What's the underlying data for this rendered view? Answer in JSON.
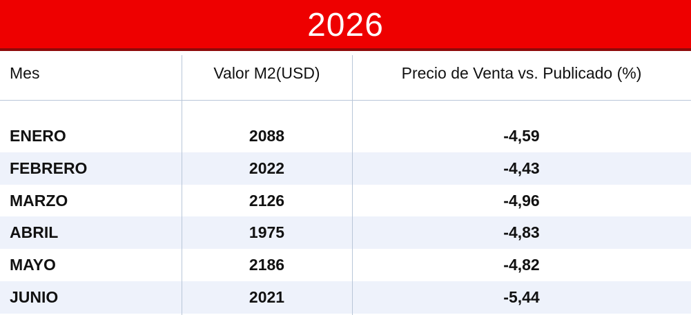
{
  "title": "2026",
  "table": {
    "header": [
      "Mes",
      "Valor M2(USD)",
      "Precio de Venta vs. Publicado (%)"
    ],
    "rows": [
      [
        "ENERO",
        "2088",
        "-4,59"
      ],
      [
        "FEBRERO",
        "2022",
        "-4,43"
      ],
      [
        "MARZO",
        "2126",
        "-4,96"
      ],
      [
        "ABRIL",
        "1975",
        "-4,83"
      ],
      [
        "MAYO",
        "2186",
        "-4,82"
      ],
      [
        "JUNIO",
        "2021",
        "-5,44"
      ]
    ]
  }
}
